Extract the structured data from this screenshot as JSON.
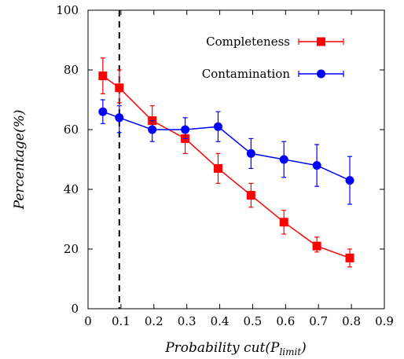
{
  "chart_data": {
    "type": "line",
    "title": "",
    "xlabel": "Probability cut(P_limit)",
    "xlabel_main": "Probability cut(P",
    "xlabel_sub": "limit",
    "xlabel_close": ")",
    "ylabel": "Percentage(%)",
    "xlim": [
      0,
      0.9
    ],
    "ylim": [
      0,
      100
    ],
    "xticks": [
      "0",
      "0.1",
      "0.2",
      "0.3",
      "0.4",
      "0.5",
      "0.6",
      "0.7",
      "0.8",
      "0.9"
    ],
    "yticks": [
      "0",
      "20",
      "40",
      "60",
      "80",
      "100"
    ],
    "vline_x": 0.095,
    "legend_position": "top-right",
    "series": [
      {
        "name": "Completeness",
        "color": "#ff0000",
        "marker": "square",
        "x": [
          0.045,
          0.095,
          0.195,
          0.295,
          0.395,
          0.495,
          0.595,
          0.695,
          0.795
        ],
        "y": [
          78,
          74,
          63,
          57,
          47,
          38,
          29,
          21,
          17
        ],
        "err_low": [
          72,
          69,
          60,
          52,
          42,
          34,
          25,
          19,
          14
        ],
        "err_high": [
          84,
          80,
          68,
          61,
          52,
          42,
          33,
          24,
          20
        ]
      },
      {
        "name": "Contamination",
        "color": "#0000ff",
        "marker": "circle",
        "x": [
          0.045,
          0.095,
          0.195,
          0.295,
          0.395,
          0.495,
          0.595,
          0.695,
          0.795
        ],
        "y": [
          66,
          64,
          60,
          60,
          61,
          52,
          50,
          48,
          43
        ],
        "err_low": [
          62,
          59,
          56,
          57,
          56,
          47,
          44,
          41,
          35
        ],
        "err_high": [
          70,
          68,
          63,
          64,
          66,
          57,
          56,
          55,
          51
        ]
      }
    ]
  }
}
